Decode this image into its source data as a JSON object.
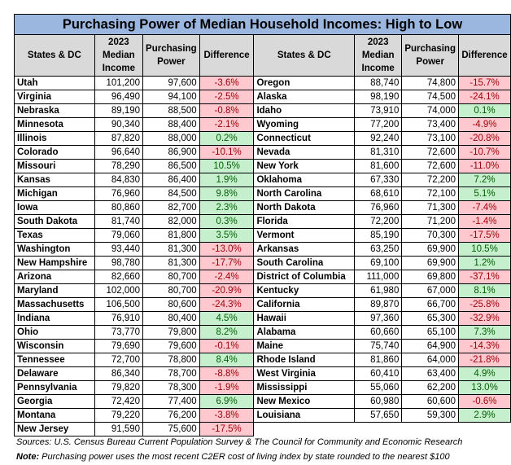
{
  "title": "Purchasing Power of Median Household Incomes: High to Low",
  "headers": [
    "States & DC",
    "2023 Median Income",
    "Purchasing Power",
    "Difference"
  ],
  "colors": {
    "title_bg": "#9bb7e0",
    "header_bg": "#d9d9d9",
    "negative_bg": "#ffc7ce",
    "negative_text": "#9c0006",
    "positive_bg": "#c6efce",
    "positive_text": "#006100"
  },
  "left_rows": [
    [
      "Utah",
      "101,200",
      "97,600",
      "-3.6%"
    ],
    [
      "Virginia",
      "96,490",
      "94,100",
      "-2.5%"
    ],
    [
      "Nebraska",
      "89,190",
      "88,500",
      "-0.8%"
    ],
    [
      "Minnesota",
      "90,340",
      "88,400",
      "-2.1%"
    ],
    [
      "Illinois",
      "87,820",
      "88,000",
      "0.2%"
    ],
    [
      "Colorado",
      "96,640",
      "86,900",
      "-10.1%"
    ],
    [
      "Missouri",
      "78,290",
      "86,500",
      "10.5%"
    ],
    [
      "Kansas",
      "84,830",
      "86,400",
      "1.9%"
    ],
    [
      "Michigan",
      "76,960",
      "84,500",
      "9.8%"
    ],
    [
      "Iowa",
      "80,860",
      "82,700",
      "2.3%"
    ],
    [
      "South Dakota",
      "81,740",
      "82,000",
      "0.3%"
    ],
    [
      "Texas",
      "79,060",
      "81,800",
      "3.5%"
    ],
    [
      "Washington",
      "93,440",
      "81,300",
      "-13.0%"
    ],
    [
      "New Hampshire",
      "98,780",
      "81,300",
      "-17.7%"
    ],
    [
      "Arizona",
      "82,660",
      "80,700",
      "-2.4%"
    ],
    [
      "Maryland",
      "102,000",
      "80,700",
      "-20.9%"
    ],
    [
      "Massachusetts",
      "106,500",
      "80,600",
      "-24.3%"
    ],
    [
      "Indiana",
      "76,910",
      "80,400",
      "4.5%"
    ],
    [
      "Ohio",
      "73,770",
      "79,800",
      "8.2%"
    ],
    [
      "Wisconsin",
      "79,690",
      "79,600",
      "-0.1%"
    ],
    [
      "Tennessee",
      "72,700",
      "78,800",
      "8.4%"
    ],
    [
      "Delaware",
      "86,340",
      "78,700",
      "-8.8%"
    ],
    [
      "Pennsylvania",
      "79,820",
      "78,300",
      "-1.9%"
    ],
    [
      "Georgia",
      "72,420",
      "77,400",
      "6.9%"
    ],
    [
      "Montana",
      "79,220",
      "76,200",
      "-3.8%"
    ],
    [
      "New Jersey",
      "91,590",
      "75,600",
      "-17.5%"
    ]
  ],
  "right_rows": [
    [
      "Oregon",
      "88,740",
      "74,800",
      "-15.7%"
    ],
    [
      "Alaska",
      "98,190",
      "74,500",
      "-24.1%"
    ],
    [
      "Idaho",
      "73,910",
      "74,000",
      "0.1%"
    ],
    [
      "Wyoming",
      "77,200",
      "73,400",
      "-4.9%"
    ],
    [
      "Connecticut",
      "92,240",
      "73,100",
      "-20.8%"
    ],
    [
      "Nevada",
      "81,310",
      "72,600",
      "-10.7%"
    ],
    [
      "New York",
      "81,600",
      "72,600",
      "-11.0%"
    ],
    [
      "Oklahoma",
      "67,330",
      "72,200",
      "7.2%"
    ],
    [
      "North Carolina",
      "68,610",
      "72,100",
      "5.1%"
    ],
    [
      "North Dakota",
      "76,960",
      "71,300",
      "-7.4%"
    ],
    [
      "Florida",
      "72,200",
      "71,200",
      "-1.4%"
    ],
    [
      "Vermont",
      "85,190",
      "70,300",
      "-17.5%"
    ],
    [
      "Arkansas",
      "63,250",
      "69,900",
      "10.5%"
    ],
    [
      "South Carolina",
      "69,100",
      "69,900",
      "1.2%"
    ],
    [
      "District of Columbia",
      "111,000",
      "69,800",
      "-37.1%"
    ],
    [
      "Kentucky",
      "61,980",
      "67,000",
      "8.1%"
    ],
    [
      "California",
      "89,870",
      "66,700",
      "-25.8%"
    ],
    [
      "Hawaii",
      "97,360",
      "65,300",
      "-32.9%"
    ],
    [
      "Alabama",
      "60,660",
      "65,100",
      "7.3%"
    ],
    [
      "Maine",
      "75,740",
      "64,900",
      "-14.3%"
    ],
    [
      "Rhode Island",
      "81,860",
      "64,000",
      "-21.8%"
    ],
    [
      "West Virginia",
      "60,410",
      "63,400",
      "4.9%"
    ],
    [
      "Mississippi",
      "55,060",
      "62,200",
      "13.0%"
    ],
    [
      "New Mexico",
      "60,980",
      "60,600",
      "-0.6%"
    ],
    [
      "Louisiana",
      "57,650",
      "59,300",
      "2.9%"
    ]
  ],
  "footer": {
    "sources": "Sources:  U.S. Census Bureau Current Population Survey & The Council for Community and Economic Research",
    "note_label": "Note:",
    "note": " Purchasing power uses the most recent C2ER cost of living index by state rounded to the nearest $100"
  }
}
